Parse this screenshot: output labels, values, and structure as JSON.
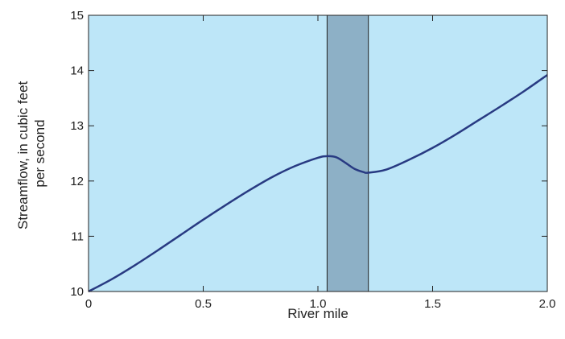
{
  "chart_data": {
    "type": "line",
    "title": "",
    "xlabel": "River mile",
    "ylabel_lines": [
      "Streamflow, in cubic feet",
      "per second"
    ],
    "xlim": [
      0,
      2.0
    ],
    "ylim": [
      10,
      15
    ],
    "x_ticks": [
      0,
      0.5,
      1.0,
      1.5,
      2.0
    ],
    "x_tick_labels": [
      "0",
      "0.5",
      "1.0",
      "1.5",
      "2.0"
    ],
    "y_ticks": [
      10,
      11,
      12,
      13,
      14,
      15
    ],
    "y_tick_labels": [
      "10",
      "11",
      "12",
      "13",
      "14",
      "15"
    ],
    "grid": false,
    "colors": {
      "plot_background": "#bde6f8",
      "line": "#283a82",
      "highlight_band": "#8db0c6",
      "axis": "#222222"
    },
    "highlight_band": {
      "x_start": 1.04,
      "x_end": 1.22
    },
    "series": [
      {
        "x": [
          0,
          0.1,
          0.2,
          0.3,
          0.4,
          0.5,
          0.6,
          0.7,
          0.8,
          0.9,
          1.0,
          1.04,
          1.08,
          1.12,
          1.16,
          1.2,
          1.22,
          1.3,
          1.4,
          1.5,
          1.6,
          1.7,
          1.8,
          1.9,
          2.0
        ],
        "y": [
          10.0,
          10.22,
          10.47,
          10.74,
          11.02,
          11.3,
          11.57,
          11.83,
          12.07,
          12.27,
          12.42,
          12.45,
          12.43,
          12.33,
          12.22,
          12.16,
          12.15,
          12.21,
          12.39,
          12.6,
          12.84,
          13.1,
          13.36,
          13.63,
          13.92
        ]
      }
    ]
  }
}
